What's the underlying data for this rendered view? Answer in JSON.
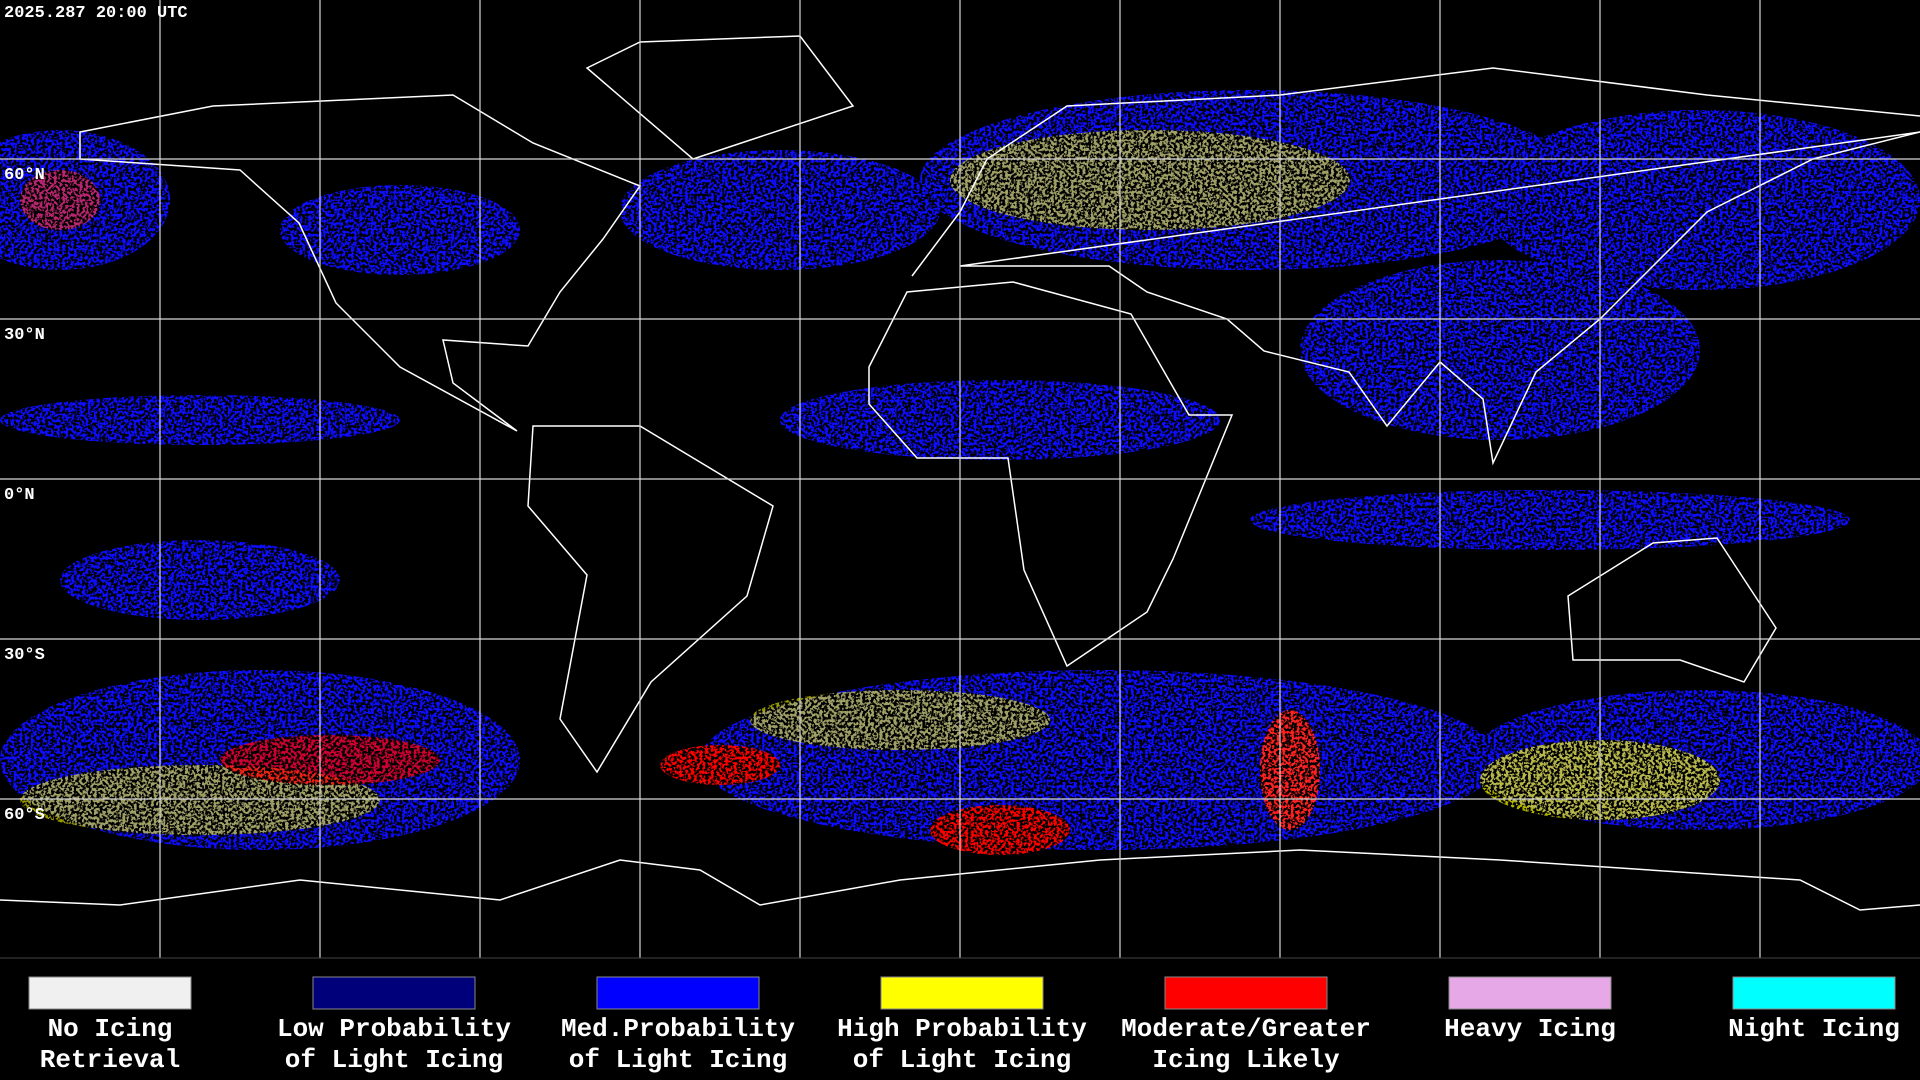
{
  "header": {
    "timestamp": "2025.287 20:00 UTC"
  },
  "map": {
    "latitude_labels": [
      "60°N",
      "30°N",
      "0°N",
      "30°S",
      "60°S"
    ]
  },
  "legend": {
    "items": [
      {
        "lines": [
          "No Icing",
          "Retrieval"
        ],
        "color": "#f0f0f0"
      },
      {
        "lines": [
          "Low Probability",
          "of Light Icing"
        ],
        "color": "#00007a"
      },
      {
        "lines": [
          "Med.Probability",
          "of Light Icing"
        ],
        "color": "#0000ff"
      },
      {
        "lines": [
          "High Probability",
          "of Light Icing"
        ],
        "color": "#ffff00"
      },
      {
        "lines": [
          "Moderate/Greater",
          "Icing Likely"
        ],
        "color": "#ff0000"
      },
      {
        "lines": [
          "Heavy Icing"
        ],
        "color": "#e6a8e6"
      },
      {
        "lines": [
          "Night Icing"
        ],
        "color": "#00ffff"
      }
    ]
  }
}
